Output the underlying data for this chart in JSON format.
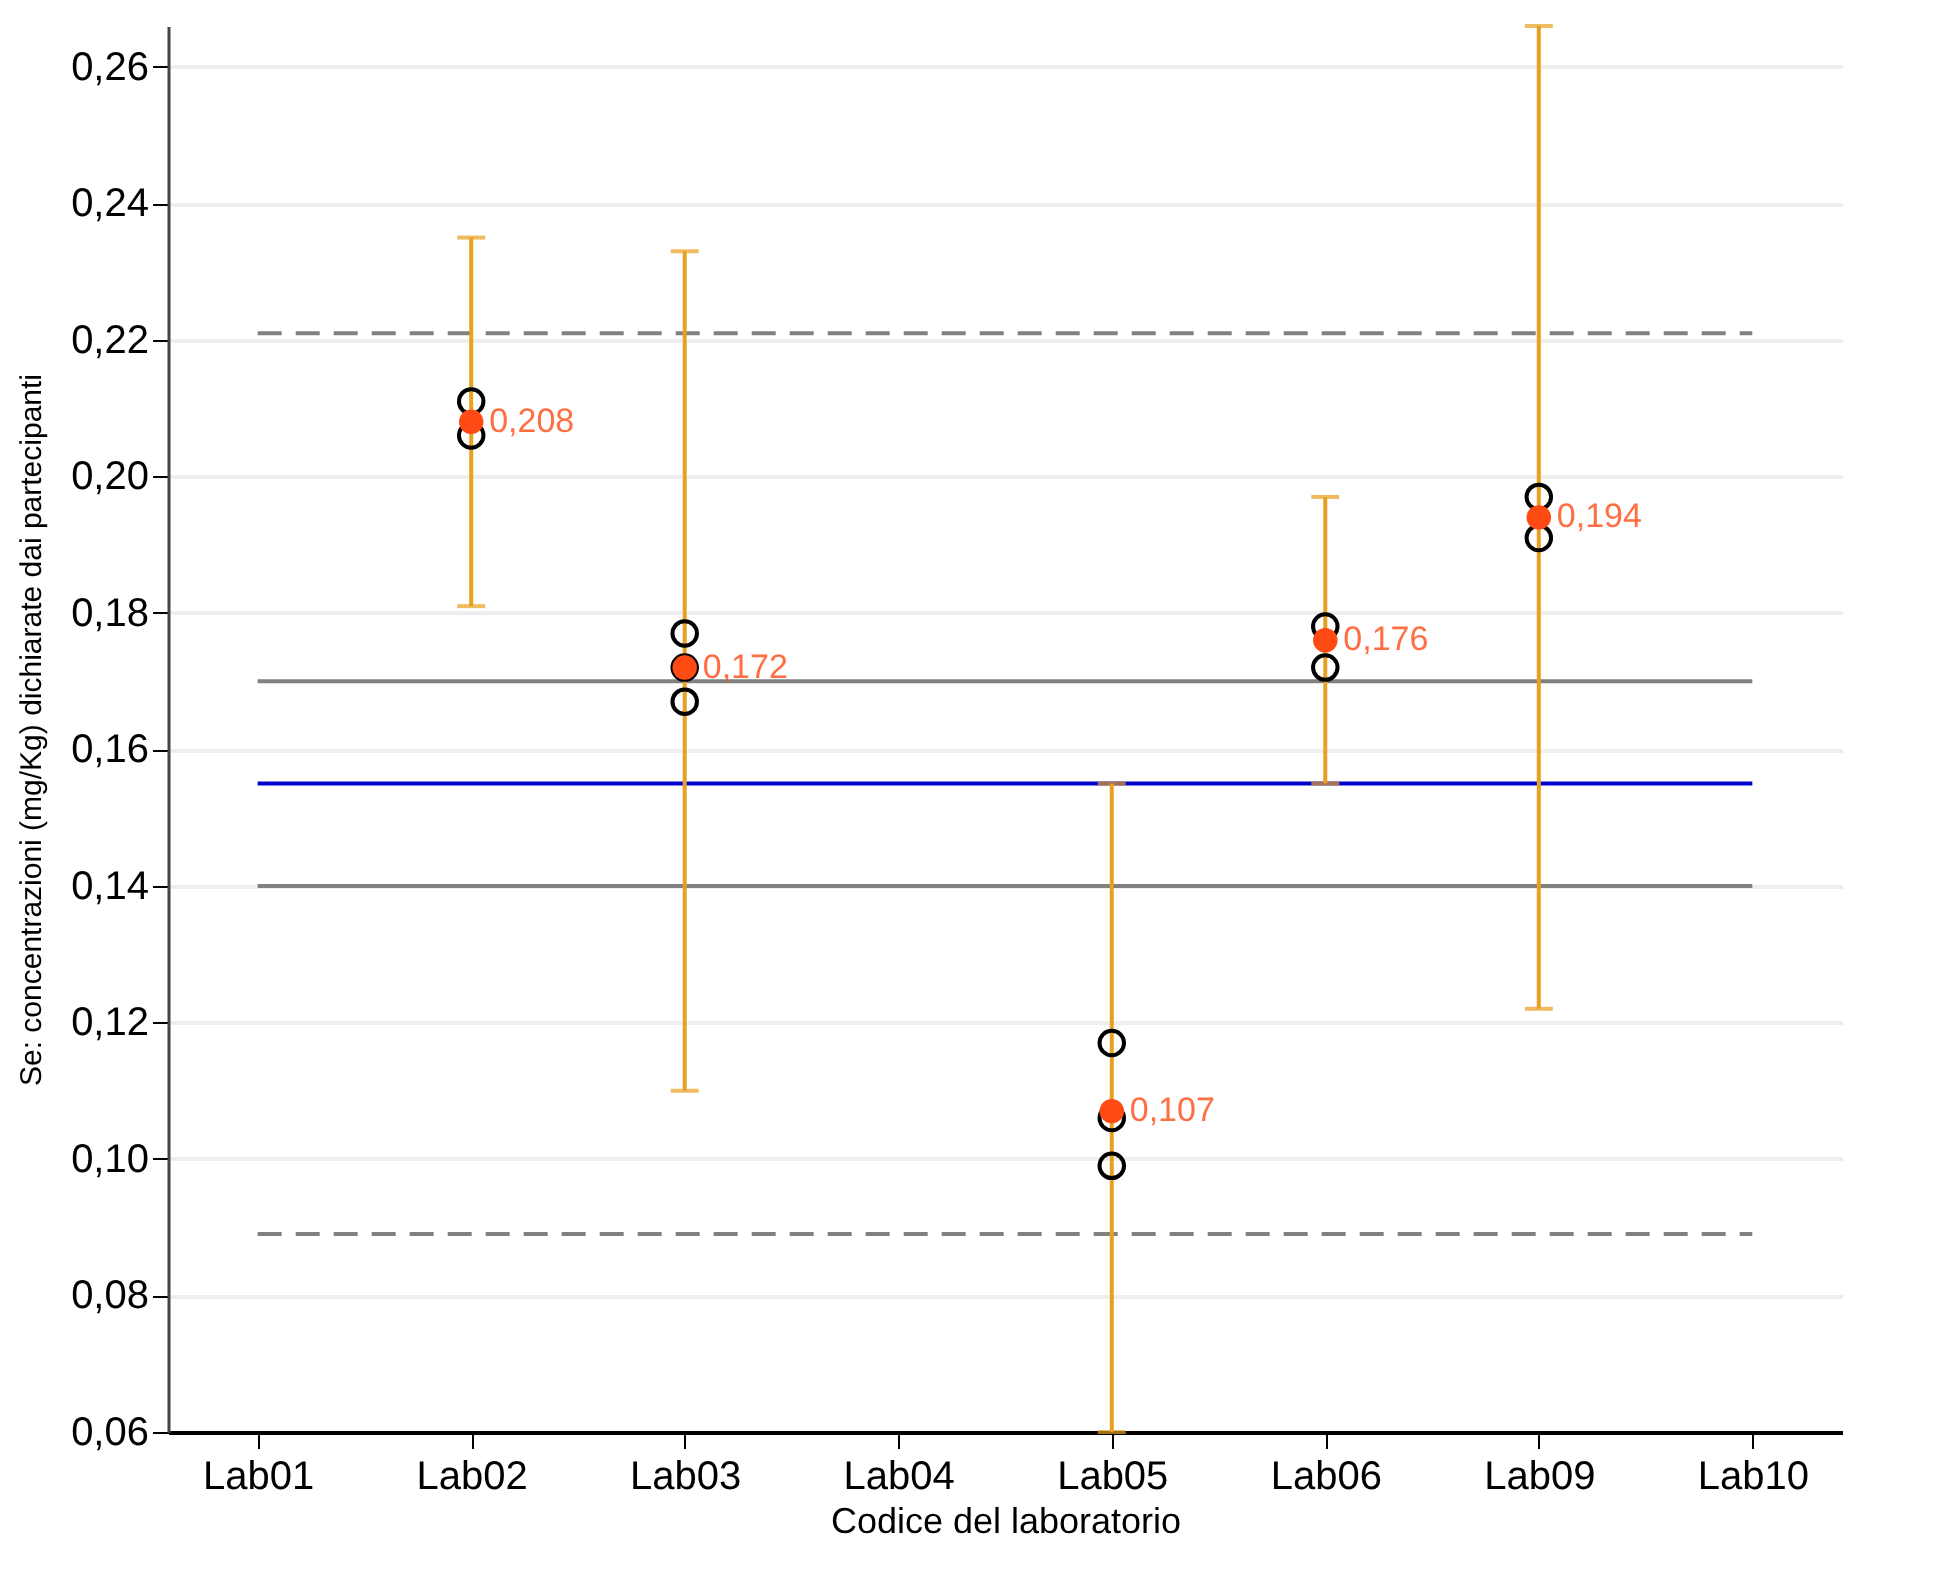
{
  "chart_data": {
    "type": "scatter",
    "xlabel": "Codice del laboratorio",
    "ylabel": "Se: concentrazioni (mg/Kg) dichiarate dai partecipanti",
    "categories": [
      "Lab01",
      "Lab02",
      "Lab03",
      "Lab04",
      "Lab05",
      "Lab06",
      "Lab09",
      "Lab10"
    ],
    "series": [
      {
        "color": "#000000",
        "values": [
          null,
          0.211,
          0.177,
          null,
          0.117,
          0.178,
          0.197,
          null
        ]
      },
      {
        "color": "#000000",
        "values": [
          null,
          null,
          0.172,
          null,
          0.106,
          null,
          null,
          null
        ]
      },
      {
        "color": "#000000",
        "values": [
          null,
          0.206,
          0.167,
          null,
          0.099,
          0.172,
          0.191,
          null
        ]
      },
      {
        "color": "#ff4a14",
        "values": [
          null,
          0.208,
          0.172,
          null,
          0.107,
          0.176,
          0.194,
          null
        ],
        "value_labels": [
          null,
          "0,208",
          "0,172",
          null,
          "0,107",
          "0,176",
          "0,194",
          null
        ],
        "errors": [
          null,
          [
            0.181,
            0.235
          ],
          [
            0.11,
            0.233
          ],
          null,
          [
            0.06,
            0.155
          ],
          [
            0.155,
            0.197
          ],
          [
            0.122,
            0.266
          ],
          null
        ]
      }
    ],
    "ylim": [
      0.06,
      0.266
    ],
    "yticks": [
      {
        "value": 0.06,
        "label": "0,06"
      },
      {
        "value": 0.08,
        "label": "0,08"
      },
      {
        "value": 0.1,
        "label": "0,10"
      },
      {
        "value": 0.12,
        "label": "0,12"
      },
      {
        "value": 0.14,
        "label": "0,14"
      },
      {
        "value": 0.16,
        "label": "0,16"
      },
      {
        "value": 0.18,
        "label": "0,18"
      },
      {
        "value": 0.2,
        "label": "0,20"
      },
      {
        "value": 0.22,
        "label": "0,22"
      },
      {
        "value": 0.24,
        "label": "0,24"
      },
      {
        "value": 0.26,
        "label": "0,26"
      }
    ],
    "ref_lines": [
      {
        "axis": "y",
        "value": 0.221,
        "color": "#808080",
        "line_style": "dashed"
      },
      {
        "axis": "y",
        "value": 0.17,
        "color": "#808080",
        "line_style": "solid"
      },
      {
        "axis": "y",
        "value": 0.155,
        "color": "#0000cc",
        "line_style": "solid"
      },
      {
        "axis": "y",
        "value": 0.14,
        "color": "#808080",
        "line_style": "solid"
      },
      {
        "axis": "y",
        "value": 0.089,
        "color": "#808080",
        "line_style": "dashed"
      }
    ],
    "grid": "y",
    "marker": "circle"
  }
}
